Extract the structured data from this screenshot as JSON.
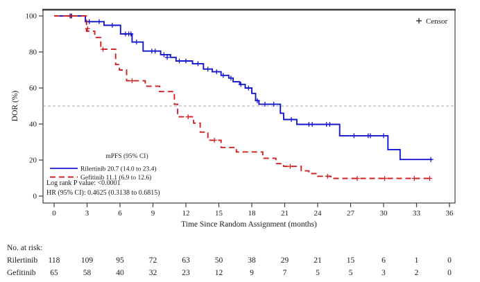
{
  "chart_data": {
    "type": "line",
    "subtype": "kaplan-meier-step",
    "xlabel": "Time Since Random Assignment (months)",
    "ylabel": "DOR (%)",
    "xlim": [
      0,
      36
    ],
    "ylim": [
      0,
      100
    ],
    "xticks": [
      0,
      3,
      6,
      9,
      12,
      15,
      18,
      21,
      24,
      27,
      30,
      33,
      36
    ],
    "yticks": [
      0,
      20,
      40,
      60,
      80,
      100
    ],
    "reference_line_y": 50,
    "grid": "off",
    "censor_legend_label": "Censor",
    "legend_header": "mPFS (95% CI)",
    "legend_position": "inside-left-bottom",
    "stats_lines": [
      "Log rank P value: <0.0001",
      "HR (95% CI): 0.4625 (0.3138 to 0.6815)"
    ],
    "colors": {
      "rilertinib": "#1515cf",
      "gefitinib": "#d02020",
      "reference_line": "#a6a6a6",
      "frame": "#3c3c3c"
    },
    "series": [
      {
        "name": "Rilertinib",
        "median_label": "Rilertinib 20.7 (14.0 to 23.4)",
        "median_months": 20.7,
        "ci": "14.0 to 23.4",
        "style": "solid",
        "color": "#1515cf",
        "steps": [
          [
            0,
            100
          ],
          [
            2.85,
            100
          ],
          [
            2.85,
            96.8
          ],
          [
            4.55,
            96.8
          ],
          [
            4.55,
            94.8
          ],
          [
            6.05,
            94.8
          ],
          [
            6.05,
            90
          ],
          [
            7.1,
            90
          ],
          [
            7.1,
            85.5
          ],
          [
            8.1,
            85.5
          ],
          [
            8.1,
            80.5
          ],
          [
            9.7,
            80.5
          ],
          [
            9.7,
            78.5
          ],
          [
            10.6,
            78.5
          ],
          [
            10.6,
            77
          ],
          [
            11.1,
            77
          ],
          [
            11.1,
            75
          ],
          [
            12.6,
            75
          ],
          [
            12.6,
            73.5
          ],
          [
            13.6,
            73.5
          ],
          [
            13.6,
            70.5
          ],
          [
            14.4,
            70.5
          ],
          [
            14.4,
            69
          ],
          [
            15.2,
            69
          ],
          [
            15.2,
            67
          ],
          [
            15.9,
            67
          ],
          [
            15.9,
            65.5
          ],
          [
            16.3,
            65.5
          ],
          [
            16.3,
            63.5
          ],
          [
            16.9,
            63.5
          ],
          [
            16.9,
            62
          ],
          [
            17.4,
            62
          ],
          [
            17.4,
            60
          ],
          [
            18.0,
            60
          ],
          [
            18.0,
            57
          ],
          [
            18.35,
            57
          ],
          [
            18.35,
            53
          ],
          [
            18.65,
            53
          ],
          [
            18.65,
            51
          ],
          [
            20.6,
            51
          ],
          [
            20.6,
            46
          ],
          [
            20.9,
            46
          ],
          [
            20.9,
            42.5
          ],
          [
            22.1,
            42.5
          ],
          [
            22.1,
            39.8
          ],
          [
            26.0,
            39.8
          ],
          [
            26.0,
            33.5
          ],
          [
            30.4,
            33.5
          ],
          [
            30.4,
            25.8
          ],
          [
            31.5,
            25.8
          ],
          [
            31.5,
            20.3
          ],
          [
            34.4,
            20.3
          ]
        ],
        "censors": [
          [
            1.45,
            100
          ],
          [
            1.6,
            100
          ],
          [
            3.2,
            96.8
          ],
          [
            4.1,
            96.8
          ],
          [
            5.3,
            94.8
          ],
          [
            6.5,
            90
          ],
          [
            6.8,
            90
          ],
          [
            7.0,
            90
          ],
          [
            7.5,
            85.5
          ],
          [
            8.9,
            80.5
          ],
          [
            9.2,
            80.5
          ],
          [
            10.0,
            78.5
          ],
          [
            10.3,
            77
          ],
          [
            11.4,
            75
          ],
          [
            12.0,
            75
          ],
          [
            13.1,
            73.5
          ],
          [
            14.0,
            70.5
          ],
          [
            14.8,
            69
          ],
          [
            15.4,
            67
          ],
          [
            16.1,
            65.5
          ],
          [
            17.0,
            62
          ],
          [
            17.7,
            60
          ],
          [
            18.5,
            53
          ],
          [
            19.2,
            51
          ],
          [
            20.0,
            51
          ],
          [
            21.6,
            42.5
          ],
          [
            23.2,
            39.8
          ],
          [
            23.5,
            39.8
          ],
          [
            24.8,
            39.8
          ],
          [
            25.1,
            39.8
          ],
          [
            27.3,
            33.5
          ],
          [
            28.6,
            33.5
          ],
          [
            28.8,
            33.5
          ],
          [
            30.0,
            33.5
          ],
          [
            34.3,
            20.3
          ]
        ]
      },
      {
        "name": "Gefitinib",
        "median_label": "Gefitinib 11.1 (6.9 to 12.6)",
        "median_months": 11.1,
        "ci": "6.9 to 12.6",
        "style": "dashed",
        "color": "#d02020",
        "steps": [
          [
            0,
            100
          ],
          [
            2.95,
            100
          ],
          [
            2.95,
            91.5
          ],
          [
            3.7,
            91.5
          ],
          [
            3.7,
            88
          ],
          [
            4.25,
            88
          ],
          [
            4.25,
            81.5
          ],
          [
            5.6,
            81.5
          ],
          [
            5.6,
            73
          ],
          [
            5.95,
            73
          ],
          [
            5.95,
            70
          ],
          [
            6.6,
            70
          ],
          [
            6.6,
            64
          ],
          [
            8.3,
            64
          ],
          [
            8.3,
            61
          ],
          [
            9.6,
            61
          ],
          [
            9.6,
            58
          ],
          [
            10.95,
            58
          ],
          [
            10.95,
            51
          ],
          [
            11.25,
            51
          ],
          [
            11.25,
            44
          ],
          [
            12.7,
            44
          ],
          [
            12.7,
            40.5
          ],
          [
            13.3,
            40.5
          ],
          [
            13.3,
            35.5
          ],
          [
            14.0,
            35.5
          ],
          [
            14.0,
            31
          ],
          [
            15.2,
            31
          ],
          [
            15.2,
            27
          ],
          [
            16.6,
            27
          ],
          [
            16.6,
            24.5
          ],
          [
            19.0,
            24.5
          ],
          [
            19.0,
            21
          ],
          [
            20.2,
            21
          ],
          [
            20.2,
            18
          ],
          [
            20.9,
            18
          ],
          [
            20.9,
            16.5
          ],
          [
            22.5,
            16.5
          ],
          [
            22.5,
            14
          ],
          [
            23.2,
            14
          ],
          [
            23.2,
            12.5
          ],
          [
            24.0,
            12.5
          ],
          [
            24.0,
            11
          ],
          [
            25.2,
            11
          ],
          [
            25.2,
            9.8
          ],
          [
            34.3,
            9.8
          ]
        ],
        "censors": [
          [
            1.5,
            100
          ],
          [
            3.05,
            93
          ],
          [
            4.45,
            81.5
          ],
          [
            7.1,
            64
          ],
          [
            12.2,
            44
          ],
          [
            14.6,
            31
          ],
          [
            21.5,
            16.5
          ],
          [
            24.9,
            11
          ],
          [
            27.6,
            9.8
          ],
          [
            30.1,
            9.8
          ],
          [
            32.8,
            9.8
          ],
          [
            34.2,
            9.8
          ]
        ]
      }
    ],
    "at_risk": {
      "title": "No. at risk:",
      "months": [
        0,
        3,
        6,
        9,
        12,
        15,
        18,
        21,
        24,
        27,
        30,
        33,
        36
      ],
      "rows": [
        {
          "label": "Rilertinib",
          "values": [
            118,
            109,
            95,
            72,
            63,
            50,
            38,
            29,
            21,
            15,
            6,
            1,
            0
          ]
        },
        {
          "label": "Gefitinib",
          "values": [
            65,
            58,
            40,
            32,
            23,
            12,
            9,
            7,
            5,
            5,
            3,
            2,
            0
          ]
        }
      ]
    }
  }
}
